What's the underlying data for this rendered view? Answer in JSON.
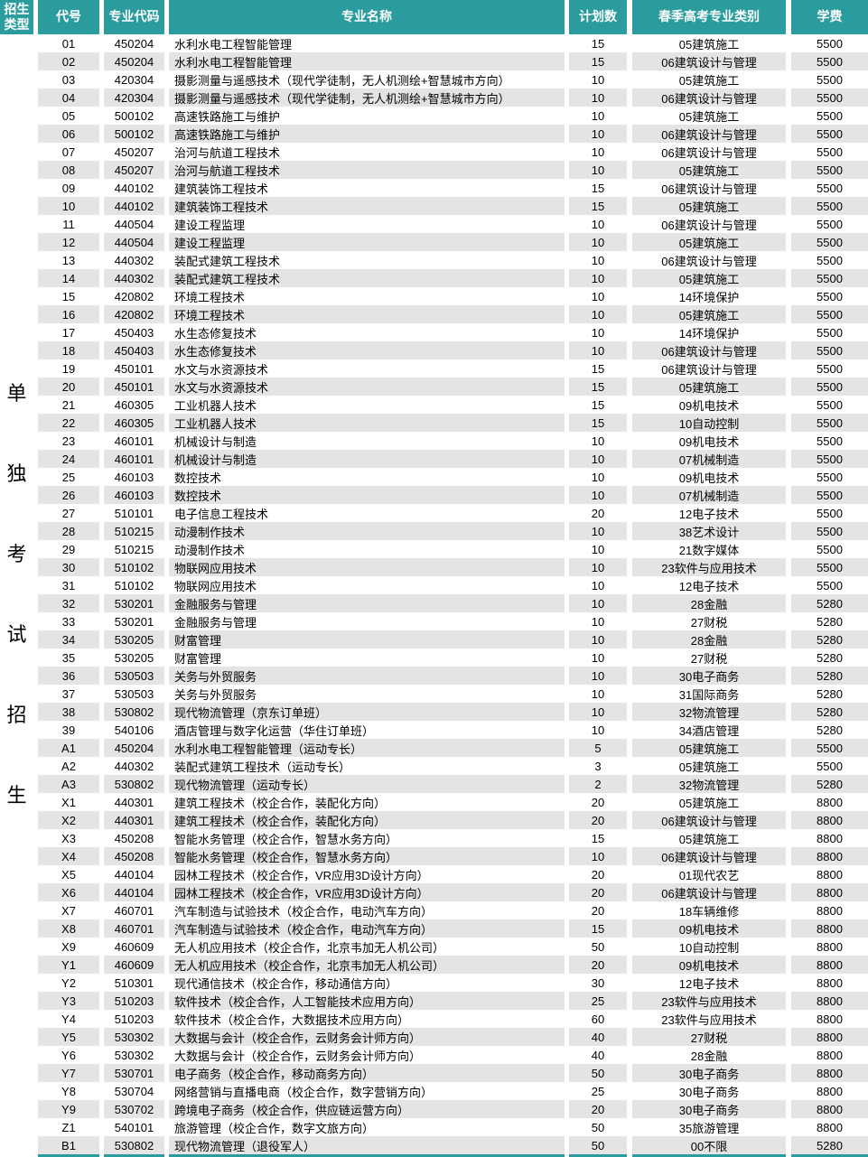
{
  "colors": {
    "header_teal": "#2A9C9E",
    "stripe_gray": "#E4E4E4",
    "text": "#000000",
    "header_text": "#FFFFFF"
  },
  "table": {
    "columns": [
      "招生类型",
      "代号",
      "专业代码",
      "专业名称",
      "计划数",
      "春季高考专业类别",
      "学费"
    ],
    "admission_type": "单独考试招生",
    "rows": [
      [
        "01",
        "450204",
        "水利水电工程智能管理",
        "15",
        "05建筑施工",
        "5500"
      ],
      [
        "02",
        "450204",
        "水利水电工程智能管理",
        "15",
        "06建筑设计与管理",
        "5500"
      ],
      [
        "03",
        "420304",
        "摄影测量与遥感技术（现代学徒制，无人机测绘+智慧城市方向）",
        "10",
        "05建筑施工",
        "5500"
      ],
      [
        "04",
        "420304",
        "摄影测量与遥感技术（现代学徒制，无人机测绘+智慧城市方向）",
        "10",
        "06建筑设计与管理",
        "5500"
      ],
      [
        "05",
        "500102",
        "高速铁路施工与维护",
        "10",
        "05建筑施工",
        "5500"
      ],
      [
        "06",
        "500102",
        "高速铁路施工与维护",
        "10",
        "06建筑设计与管理",
        "5500"
      ],
      [
        "07",
        "450207",
        "治河与航道工程技术",
        "10",
        "06建筑设计与管理",
        "5500"
      ],
      [
        "08",
        "450207",
        "治河与航道工程技术",
        "10",
        "05建筑施工",
        "5500"
      ],
      [
        "09",
        "440102",
        "建筑装饰工程技术",
        "15",
        "06建筑设计与管理",
        "5500"
      ],
      [
        "10",
        "440102",
        "建筑装饰工程技术",
        "15",
        "05建筑施工",
        "5500"
      ],
      [
        "11",
        "440504",
        "建设工程监理",
        "10",
        "06建筑设计与管理",
        "5500"
      ],
      [
        "12",
        "440504",
        "建设工程监理",
        "10",
        "05建筑施工",
        "5500"
      ],
      [
        "13",
        "440302",
        "装配式建筑工程技术",
        "10",
        "06建筑设计与管理",
        "5500"
      ],
      [
        "14",
        "440302",
        "装配式建筑工程技术",
        "10",
        "05建筑施工",
        "5500"
      ],
      [
        "15",
        "420802",
        "环境工程技术",
        "10",
        "14环境保护",
        "5500"
      ],
      [
        "16",
        "420802",
        "环境工程技术",
        "10",
        "05建筑施工",
        "5500"
      ],
      [
        "17",
        "450403",
        "水生态修复技术",
        "10",
        "14环境保护",
        "5500"
      ],
      [
        "18",
        "450403",
        "水生态修复技术",
        "10",
        "06建筑设计与管理",
        "5500"
      ],
      [
        "19",
        "450101",
        "水文与水资源技术",
        "15",
        "06建筑设计与管理",
        "5500"
      ],
      [
        "20",
        "450101",
        "水文与水资源技术",
        "15",
        "05建筑施工",
        "5500"
      ],
      [
        "21",
        "460305",
        "工业机器人技术",
        "15",
        "09机电技术",
        "5500"
      ],
      [
        "22",
        "460305",
        "工业机器人技术",
        "15",
        "10自动控制",
        "5500"
      ],
      [
        "23",
        "460101",
        "机械设计与制造",
        "10",
        "09机电技术",
        "5500"
      ],
      [
        "24",
        "460101",
        "机械设计与制造",
        "10",
        "07机械制造",
        "5500"
      ],
      [
        "25",
        "460103",
        "数控技术",
        "10",
        "09机电技术",
        "5500"
      ],
      [
        "26",
        "460103",
        "数控技术",
        "10",
        "07机械制造",
        "5500"
      ],
      [
        "27",
        "510101",
        "电子信息工程技术",
        "20",
        "12电子技术",
        "5500"
      ],
      [
        "28",
        "510215",
        "动漫制作技术",
        "10",
        "38艺术设计",
        "5500"
      ],
      [
        "29",
        "510215",
        "动漫制作技术",
        "10",
        "21数字媒体",
        "5500"
      ],
      [
        "30",
        "510102",
        "物联网应用技术",
        "10",
        "23软件与应用技术",
        "5500"
      ],
      [
        "31",
        "510102",
        "物联网应用技术",
        "10",
        "12电子技术",
        "5500"
      ],
      [
        "32",
        "530201",
        "金融服务与管理",
        "10",
        "28金融",
        "5280"
      ],
      [
        "33",
        "530201",
        "金融服务与管理",
        "10",
        "27财税",
        "5280"
      ],
      [
        "34",
        "530205",
        "财富管理",
        "10",
        "28金融",
        "5280"
      ],
      [
        "35",
        "530205",
        "财富管理",
        "10",
        "27财税",
        "5280"
      ],
      [
        "36",
        "530503",
        "关务与外贸服务",
        "10",
        "30电子商务",
        "5280"
      ],
      [
        "37",
        "530503",
        "关务与外贸服务",
        "10",
        "31国际商务",
        "5280"
      ],
      [
        "38",
        "530802",
        "现代物流管理（京东订单班）",
        "10",
        "32物流管理",
        "5280"
      ],
      [
        "39",
        "540106",
        "酒店管理与数字化运营（华住订单班）",
        "10",
        "34酒店管理",
        "5280"
      ],
      [
        "A1",
        "450204",
        "水利水电工程智能管理（运动专长）",
        "5",
        "05建筑施工",
        "5500"
      ],
      [
        "A2",
        "440302",
        "装配式建筑工程技术（运动专长）",
        "3",
        "05建筑施工",
        "5500"
      ],
      [
        "A3",
        "530802",
        "现代物流管理（运动专长）",
        "2",
        "32物流管理",
        "5280"
      ],
      [
        "X1",
        "440301",
        "建筑工程技术（校企合作，装配化方向）",
        "20",
        "05建筑施工",
        "8800"
      ],
      [
        "X2",
        "440301",
        "建筑工程技术（校企合作，装配化方向）",
        "20",
        "06建筑设计与管理",
        "8800"
      ],
      [
        "X3",
        "450208",
        "智能水务管理（校企合作，智慧水务方向）",
        "15",
        "05建筑施工",
        "8800"
      ],
      [
        "X4",
        "450208",
        "智能水务管理（校企合作，智慧水务方向）",
        "10",
        "06建筑设计与管理",
        "8800"
      ],
      [
        "X5",
        "440104",
        "园林工程技术（校企合作，VR应用3D设计方向）",
        "20",
        "01现代农艺",
        "8800"
      ],
      [
        "X6",
        "440104",
        "园林工程技术（校企合作，VR应用3D设计方向）",
        "20",
        "06建筑设计与管理",
        "8800"
      ],
      [
        "X7",
        "460701",
        "汽车制造与试验技术（校企合作，电动汽车方向）",
        "20",
        "18车辆维修",
        "8800"
      ],
      [
        "X8",
        "460701",
        "汽车制造与试验技术（校企合作，电动汽车方向）",
        "15",
        "09机电技术",
        "8800"
      ],
      [
        "X9",
        "460609",
        "无人机应用技术（校企合作，北京韦加无人机公司）",
        "50",
        "10自动控制",
        "8800"
      ],
      [
        "Y1",
        "460609",
        "无人机应用技术（校企合作，北京韦加无人机公司）",
        "20",
        "09机电技术",
        "8800"
      ],
      [
        "Y2",
        "510301",
        "现代通信技术（校企合作，移动通信方向）",
        "30",
        "12电子技术",
        "8800"
      ],
      [
        "Y3",
        "510203",
        "软件技术（校企合作，人工智能技术应用方向）",
        "25",
        "23软件与应用技术",
        "8800"
      ],
      [
        "Y4",
        "510203",
        "软件技术（校企合作，大数据技术应用方向）",
        "60",
        "23软件与应用技术",
        "8800"
      ],
      [
        "Y5",
        "530302",
        "大数据与会计（校企合作，云财务会计师方向）",
        "40",
        "27财税",
        "8800"
      ],
      [
        "Y6",
        "530302",
        "大数据与会计（校企合作，云财务会计师方向）",
        "40",
        "28金融",
        "8800"
      ],
      [
        "Y7",
        "530701",
        "电子商务（校企合作，移动商务方向）",
        "50",
        "30电子商务",
        "8800"
      ],
      [
        "Y8",
        "530704",
        "网络营销与直播电商（校企合作，数字营销方向）",
        "25",
        "30电子商务",
        "8800"
      ],
      [
        "Y9",
        "530702",
        "跨境电子商务（校企合作，供应链运营方向）",
        "20",
        "30电子商务",
        "8800"
      ],
      [
        "Z1",
        "540101",
        "旅游管理（校企合作，数字文旅方向）",
        "50",
        "35旅游管理",
        "8800"
      ],
      [
        "B1",
        "530802",
        "现代物流管理（退役军人）",
        "50",
        "00不限",
        "5280"
      ]
    ]
  }
}
